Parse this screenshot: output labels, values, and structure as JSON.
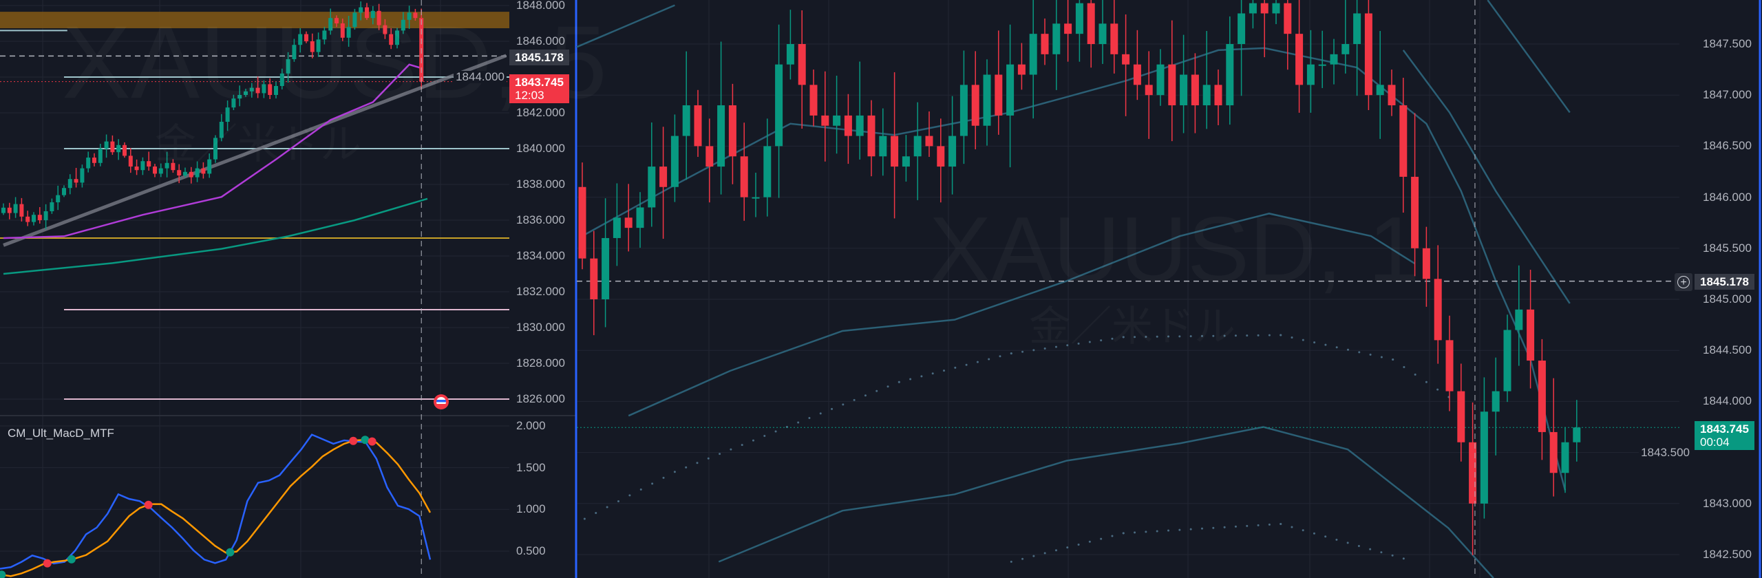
{
  "chart_data": [
    {
      "type": "candlestick",
      "title": "XAUUSD, 5",
      "subtitle": "金／米ドル",
      "ylim": [
        1825,
        1848.3
      ],
      "y_ticks": [
        "1848.000",
        "1846.000",
        "1844.000",
        "1842.000",
        "1840.000",
        "1838.000",
        "1836.000",
        "1834.000",
        "1832.000",
        "1830.000",
        "1828.000",
        "1826.000"
      ],
      "closes": [
        1836.7,
        1836.4,
        1836.9,
        1836.2,
        1835.9,
        1836.3,
        1836.0,
        1836.5,
        1837.0,
        1837.4,
        1837.8,
        1838.3,
        1838.1,
        1838.9,
        1839.5,
        1839.2,
        1840.0,
        1840.4,
        1839.8,
        1840.2,
        1839.6,
        1839.0,
        1838.8,
        1839.3,
        1839.0,
        1838.6,
        1838.9,
        1839.2,
        1838.8,
        1838.5,
        1838.7,
        1838.4,
        1838.9,
        1838.6,
        1839.4,
        1840.6,
        1841.5,
        1842.3,
        1842.8,
        1843.0,
        1843.2,
        1843.4,
        1843.1,
        1843.6,
        1843.0,
        1843.5,
        1844.2,
        1845.0,
        1845.8,
        1846.4,
        1846.0,
        1845.4,
        1846.1,
        1846.6,
        1847.3,
        1847.0,
        1846.2,
        1846.8,
        1847.6,
        1847.9,
        1847.3,
        1847.7,
        1846.9,
        1846.4,
        1845.8,
        1846.6,
        1847.2,
        1847.6,
        1847.3,
        1843.745
      ],
      "levels": [
        {
          "price": 1844.0,
          "color": "#9fc5cc",
          "from_bar": 10
        },
        {
          "price": 1840.0,
          "color": "#9fc5cc",
          "from_bar": 10
        },
        {
          "price": 1835.0,
          "color": "#c9a227",
          "from_bar": 0
        },
        {
          "price": 1831.0,
          "color": "#e0b8d0",
          "from_bar": 10
        },
        {
          "price": 1826.0,
          "color": "#e0b8d0",
          "from_bar": 10
        },
        {
          "price": 1846.6,
          "color": "#9fc5cc",
          "from_bar": 0,
          "to_bar": 6
        }
      ],
      "zone": {
        "from": 1846.73,
        "to": 1847.65,
        "color": "#8a5d14"
      },
      "ma_purple": [
        [
          0,
          1835.0
        ],
        [
          10,
          1835.1
        ],
        [
          23,
          1836.3
        ],
        [
          36,
          1837.3
        ],
        [
          45,
          1839.4
        ],
        [
          54,
          1841.6
        ],
        [
          61,
          1842.6
        ],
        [
          67,
          1844.7
        ],
        [
          69,
          1844.5
        ]
      ],
      "ma_green": [
        [
          0,
          1833.0
        ],
        [
          18,
          1833.6
        ],
        [
          36,
          1834.4
        ],
        [
          47,
          1835.1
        ],
        [
          58,
          1836.0
        ],
        [
          70,
          1837.2
        ]
      ],
      "trendline": [
        [
          0,
          1834.6
        ],
        [
          83,
          1845.2
        ]
      ],
      "last_price": {
        "value": "1843.745",
        "countdown": "12:03",
        "color": "#f23645"
      },
      "crosshair_price": "1845.178",
      "cursor_bar": 69
    },
    {
      "type": "line",
      "title": "CM_Ult_MacD_MTF",
      "ylim": [
        0.2,
        2.1
      ],
      "y_ticks": [
        "2.000",
        "1.500",
        "1.000",
        "0.500"
      ],
      "series": [
        {
          "color": "#2962ff",
          "values": [
            0.289,
            0.308,
            0.371,
            0.448,
            0.412,
            0.352,
            0.371,
            0.508,
            0.701,
            0.783,
            0.948,
            1.181,
            1.126,
            1.099,
            1.017,
            0.898,
            0.783,
            0.651,
            0.508,
            0.398,
            0.357,
            0.398,
            0.632,
            1.099,
            1.319,
            1.346,
            1.41,
            1.566,
            1.717,
            1.896,
            1.841,
            1.786,
            1.827,
            1.814,
            1.805,
            1.607,
            1.264,
            1.044,
            1.003,
            0.92,
            0.398
          ]
        },
        {
          "color": "#ff9800",
          "values": [
            0.22,
            0.2,
            0.233,
            0.283,
            0.343,
            0.371,
            0.385,
            0.412,
            0.453,
            0.536,
            0.618,
            0.769,
            0.92,
            1.017,
            1.063,
            1.063,
            0.975,
            0.893,
            0.783,
            0.673,
            0.563,
            0.481,
            0.494,
            0.618,
            0.783,
            0.948,
            1.113,
            1.278,
            1.401,
            1.511,
            1.635,
            1.717,
            1.786,
            1.827,
            1.833,
            1.8,
            1.676,
            1.539,
            1.36,
            1.195,
            0.962
          ]
        }
      ],
      "crosses": [
        {
          "at": 0.15,
          "kind": "up"
        },
        {
          "at": 4.4,
          "kind": "down"
        },
        {
          "at": 6.65,
          "kind": "up"
        },
        {
          "at": 13.8,
          "kind": "down"
        },
        {
          "at": 21.4,
          "kind": "up"
        },
        {
          "at": 32.85,
          "kind": "down"
        },
        {
          "at": 33.95,
          "kind": "up"
        },
        {
          "at": 34.6,
          "kind": "down"
        }
      ]
    },
    {
      "type": "candlestick",
      "title": "XAUUSD, 1",
      "subtitle": "金／米ドル",
      "ylim": [
        1842.35,
        1847.93
      ],
      "y_ticks": [
        "1847.500",
        "1847.000",
        "1846.500",
        "1846.000",
        "1845.500",
        "1845.000",
        "1844.500",
        "1844.000",
        "1843.500",
        "1843.000",
        "1842.500"
      ],
      "open_first": 1846.1,
      "closes": [
        1845.4,
        1845.0,
        1845.6,
        1845.8,
        1845.7,
        1845.9,
        1846.3,
        1846.1,
        1846.6,
        1846.9,
        1846.5,
        1846.3,
        1846.9,
        1846.4,
        1846.0,
        1846.0,
        1846.5,
        1847.3,
        1847.5,
        1847.1,
        1846.8,
        1846.7,
        1846.8,
        1846.6,
        1846.8,
        1846.4,
        1846.6,
        1846.3,
        1846.4,
        1846.6,
        1846.5,
        1846.3,
        1846.6,
        1847.1,
        1846.7,
        1847.2,
        1846.8,
        1847.3,
        1847.2,
        1847.6,
        1847.4,
        1847.7,
        1847.6,
        1847.9,
        1847.5,
        1847.7,
        1847.4,
        1847.3,
        1847.1,
        1847.0,
        1847.3,
        1846.9,
        1847.2,
        1846.9,
        1847.1,
        1846.9,
        1847.5,
        1847.8,
        1847.9,
        1847.8,
        1847.9,
        1847.6,
        1847.1,
        1847.3,
        1847.3,
        1847.4,
        1847.5,
        1847.8,
        1847.0,
        1847.1,
        1846.9,
        1846.2,
        1845.5,
        1845.2,
        1844.6,
        1844.1,
        1843.6,
        1843.0,
        1843.9,
        1844.1,
        1844.7,
        1844.9,
        1844.4,
        1843.7,
        1843.3,
        1843.6,
        1843.745
      ],
      "bands": [
        {
          "style": "solid",
          "points": [
            [
              -0.5,
              1847.47
            ],
            [
              8,
              1847.88
            ]
          ]
        },
        {
          "style": "solid",
          "points": [
            [
              0,
              1845.62
            ],
            [
              8,
              1846.12
            ],
            [
              18,
              1846.72
            ],
            [
              27,
              1846.61
            ],
            [
              37,
              1846.83
            ],
            [
              47,
              1847.14
            ],
            [
              55,
              1847.44
            ],
            [
              59,
              1847.46
            ],
            [
              67,
              1847.27
            ],
            [
              73,
              1846.72
            ],
            [
              76,
              1846.06
            ],
            [
              79,
              1845.18
            ],
            [
              82,
              1844.41
            ],
            [
              85,
              1843.13
            ]
          ]
        },
        {
          "style": "solid",
          "points": [
            [
              71,
              1847.44
            ],
            [
              75,
              1846.83
            ],
            [
              79,
              1846.06
            ],
            [
              85.4,
              1844.96
            ]
          ]
        },
        {
          "style": "solid",
          "points": [
            [
              78.3,
              1847.93
            ],
            [
              85.4,
              1846.83
            ]
          ]
        },
        {
          "style": "solid",
          "points": [
            [
              4,
              1843.86
            ],
            [
              12.8,
              1844.3
            ],
            [
              22.5,
              1844.69
            ],
            [
              32.2,
              1844.8
            ],
            [
              41.9,
              1845.18
            ],
            [
              51.7,
              1845.62
            ],
            [
              59.4,
              1845.84
            ],
            [
              68.2,
              1845.62
            ],
            [
              72,
              1845.35
            ]
          ]
        },
        {
          "style": "solid",
          "points": [
            [
              11.8,
              1842.43
            ],
            [
              22.5,
              1842.93
            ],
            [
              32.2,
              1843.09
            ],
            [
              41.9,
              1843.42
            ],
            [
              51.7,
              1843.59
            ],
            [
              58.9,
              1843.75
            ],
            [
              66.2,
              1843.53
            ],
            [
              74.9,
              1842.76
            ],
            [
              78.8,
              1842.27
            ]
          ]
        },
        {
          "style": "dots",
          "points": [
            [
              0.2,
              1842.85
            ],
            [
              8,
              1843.31
            ],
            [
              17.7,
              1843.75
            ],
            [
              27.4,
              1844.19
            ],
            [
              37.1,
              1844.47
            ],
            [
              46.8,
              1844.63
            ],
            [
              60.4,
              1844.65
            ],
            [
              70.1,
              1844.41
            ],
            [
              75.9,
              1843.97
            ]
          ]
        },
        {
          "style": "dots",
          "points": [
            [
              37.1,
              1842.43
            ],
            [
              46.8,
              1842.71
            ],
            [
              60.4,
              1842.8
            ],
            [
              72,
              1842.43
            ]
          ]
        }
      ],
      "last_price": {
        "value": "1843.745",
        "countdown": "00:04",
        "color": "#089981"
      },
      "crosshair_price": "1845.178",
      "cursor_bar": 77.2
    }
  ],
  "colors": {
    "up": "#089981",
    "down": "#f23645",
    "background": "#151924",
    "grid": "#222633",
    "axis_text": "#b2b5be",
    "divider": "#2962ff"
  },
  "icons": {
    "crosshair_add": "plus-circle-icon",
    "event": "us-flag-event-icon"
  }
}
